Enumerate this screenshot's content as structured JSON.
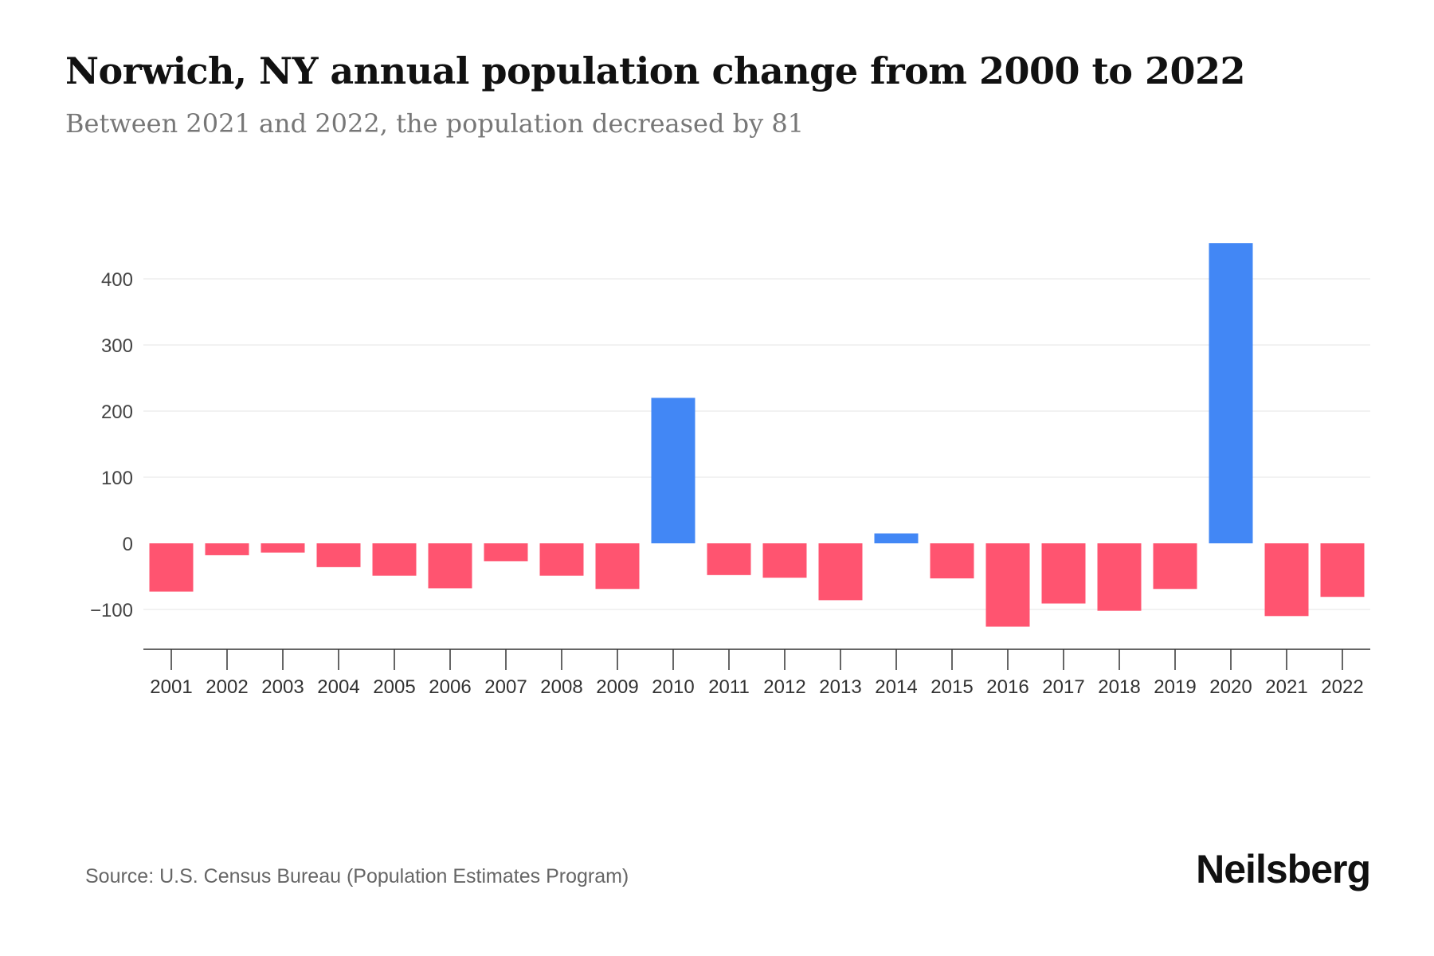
{
  "title": "Norwich, NY annual population change from 2000 to 2022",
  "subtitle": "Between 2021 and 2022, the population decreased by 81",
  "source": "Source: U.S. Census Bureau (Population Estimates Program)",
  "logo": "Neilsberg",
  "colors": {
    "positive": "#4287f5",
    "negative": "#ff5470"
  },
  "chart_data": {
    "type": "bar",
    "title": "Norwich, NY annual population change from 2000 to 2022",
    "xlabel": "",
    "ylabel": "",
    "categories": [
      "2001",
      "2002",
      "2003",
      "2004",
      "2005",
      "2006",
      "2007",
      "2008",
      "2009",
      "2010",
      "2011",
      "2012",
      "2013",
      "2014",
      "2015",
      "2016",
      "2017",
      "2018",
      "2019",
      "2020",
      "2021",
      "2022"
    ],
    "values": [
      -73,
      -18,
      -14,
      -36,
      -49,
      -68,
      -27,
      -49,
      -69,
      220,
      -48,
      -52,
      -86,
      15,
      -53,
      -126,
      -91,
      -102,
      -69,
      454,
      -110,
      -81
    ],
    "yticks": [
      400,
      300,
      200,
      100,
      0,
      -100
    ],
    "ytick_labels": [
      "400",
      "300",
      "200",
      "100",
      "0",
      "−100"
    ],
    "ylim": [
      -160,
      460
    ],
    "grid": true,
    "legend": "none"
  }
}
